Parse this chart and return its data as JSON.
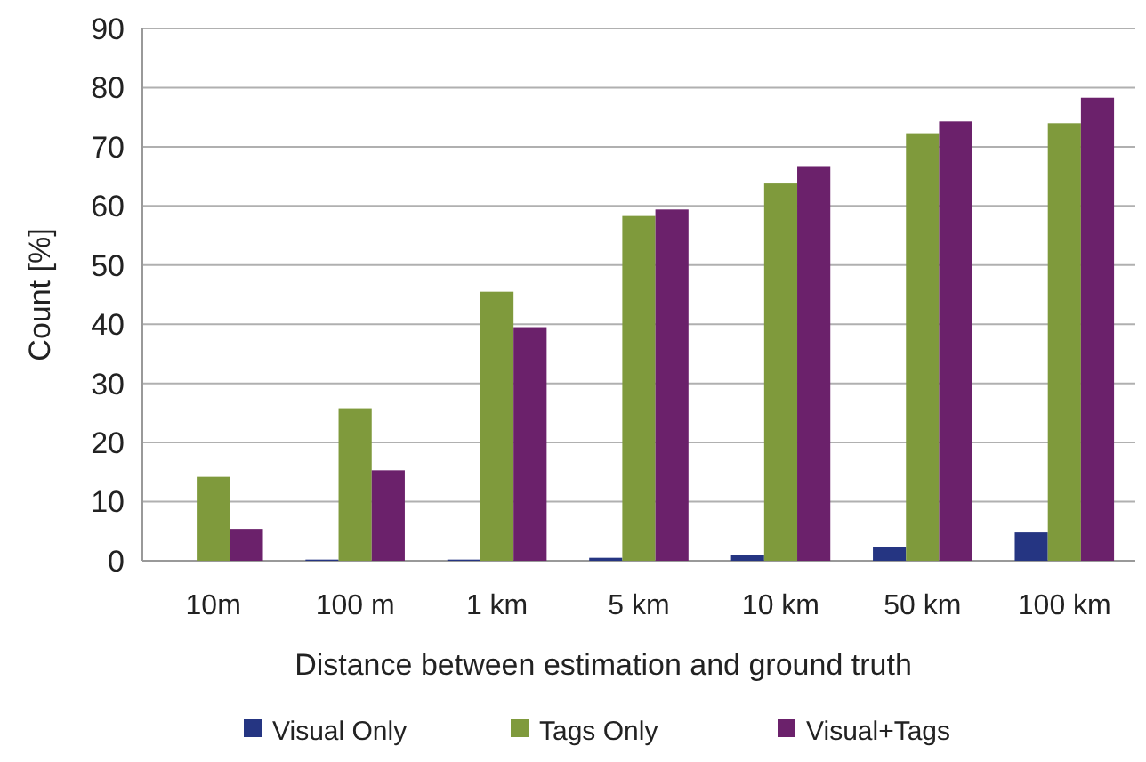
{
  "chart_data": {
    "type": "bar",
    "xlabel": "Distance between estimation and ground truth",
    "ylabel": "Count [%]",
    "categories": [
      "10m",
      "100 m",
      "1 km",
      "5 km",
      "10 km",
      "50 km",
      "100 km"
    ],
    "series": [
      {
        "name": "Visual Only",
        "color": "#253582",
        "values": [
          0,
          0.2,
          0.2,
          0.5,
          1,
          2.4,
          4.8
        ]
      },
      {
        "name": "Tags Only",
        "color": "#7f9a3c",
        "values": [
          14.2,
          25.8,
          45.5,
          58.3,
          63.8,
          72.3,
          74.0
        ]
      },
      {
        "name": "Visual+Tags",
        "color": "#6b216b",
        "values": [
          5.4,
          15.3,
          39.5,
          59.4,
          66.6,
          74.3,
          78.3
        ]
      }
    ],
    "ylim": [
      0,
      90
    ],
    "yticks": [
      0,
      10,
      20,
      30,
      40,
      50,
      60,
      70,
      80,
      90
    ],
    "grid": "y",
    "legend": "bottom"
  }
}
